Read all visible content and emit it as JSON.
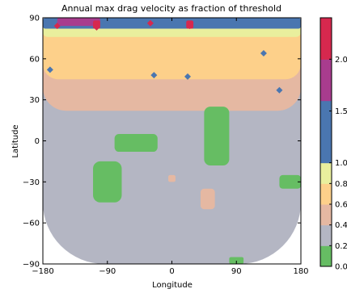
{
  "chart_data": {
    "type": "heatmap",
    "title": "Annual max drag velocity as fraction of threshold",
    "xlabel": "Longitude",
    "ylabel": "Latitude",
    "xlim": [
      -180,
      180
    ],
    "ylim": [
      -90,
      90
    ],
    "x_ticks": [
      -180,
      -90,
      0,
      90,
      180
    ],
    "x_tick_labels": [
      "−180",
      "−90",
      "0",
      "90",
      "180"
    ],
    "y_ticks": [
      -90,
      -60,
      -30,
      0,
      30,
      60,
      90
    ],
    "y_tick_labels": [
      "−90",
      "−60",
      "−30",
      "0",
      "30",
      "60",
      "90"
    ],
    "grid": false,
    "colorbar": {
      "levels": [
        0.0,
        0.2,
        0.4,
        0.6,
        0.8,
        1.0,
        1.2,
        1.4,
        1.6,
        1.8,
        2.0,
        2.2,
        2.4
      ],
      "tick_values": [
        0.0,
        0.2,
        0.4,
        0.6,
        0.8,
        1.0,
        1.5,
        2.0
      ],
      "tick_labels": [
        "0.0",
        "0.2",
        "0.4",
        "0.6",
        "0.8",
        "1.0",
        "1.5",
        "2.0"
      ],
      "band_colors": [
        "#66bd63",
        "#66bd63",
        "#b4b6c3",
        "#b4b6c3",
        "#e5b8a2",
        "#e5b8a2",
        "#fdd08a",
        "#fdd08a",
        "#e9ef9d",
        "#e9ef9d",
        "#4a76b0",
        "#4a76b0",
        "#a83c8e",
        "#a83c8e",
        "#d6284e",
        "#d6284e"
      ]
    },
    "level_colors": {
      "0.0-0.2": "#66bd63",
      "0.2-0.4": "#b4b6c3",
      "0.4-0.6": "#e5b8a2",
      "0.6-0.8": "#fdd08a",
      "0.8-1.0": "#e9ef9d",
      "1.0-1.5": "#4a76b0",
      "1.5-2.0": "#a83c8e",
      "2.0+": "#d6284e"
    },
    "regions": [
      {
        "level": 0.3,
        "lon": [
          -180,
          180
        ],
        "lat": [
          -90,
          90
        ]
      },
      {
        "level": 0.5,
        "lon": [
          -180,
          180
        ],
        "lat": [
          22,
          90
        ]
      },
      {
        "level": 0.7,
        "lon": [
          -180,
          180
        ],
        "lat": [
          45,
          90
        ]
      },
      {
        "level": 0.9,
        "lon": [
          -180,
          180
        ],
        "lat": [
          76,
          90
        ]
      },
      {
        "level": 1.2,
        "lon": [
          -180,
          180
        ],
        "lat": [
          82,
          90
        ]
      },
      {
        "level": 1.7,
        "lon": [
          -160,
          -100
        ],
        "lat": [
          84,
          90
        ]
      },
      {
        "level": 2.1,
        "lon": [
          -110,
          -100
        ],
        "lat": [
          82,
          88
        ]
      },
      {
        "level": 2.1,
        "lon": [
          20,
          30
        ],
        "lat": [
          82,
          88
        ]
      },
      {
        "level": 0.1,
        "lon": [
          45,
          80
        ],
        "lat": [
          -18,
          25
        ]
      },
      {
        "level": 0.1,
        "lon": [
          -110,
          -70
        ],
        "lat": [
          -45,
          -15
        ]
      },
      {
        "level": 0.1,
        "lon": [
          -80,
          -20
        ],
        "lat": [
          -8,
          5
        ]
      },
      {
        "level": 0.1,
        "lon": [
          80,
          100
        ],
        "lat": [
          -90,
          -85
        ]
      },
      {
        "level": 0.1,
        "lon": [
          150,
          180
        ],
        "lat": [
          -35,
          -25
        ]
      },
      {
        "level": 0.5,
        "lon": [
          -5,
          5
        ],
        "lat": [
          -30,
          -25
        ]
      },
      {
        "level": 0.5,
        "lon": [
          40,
          60
        ],
        "lat": [
          -50,
          -35
        ]
      }
    ],
    "spots": [
      {
        "lon": -160,
        "lat": 84,
        "level": 2.1
      },
      {
        "lon": -105,
        "lat": 83,
        "level": 2.1
      },
      {
        "lon": -30,
        "lat": 86,
        "level": 2.1
      },
      {
        "lon": 25,
        "lat": 84,
        "level": 2.1
      },
      {
        "lon": 150,
        "lat": 37,
        "level": 1.2
      },
      {
        "lon": -170,
        "lat": 52,
        "level": 1.2
      },
      {
        "lon": 128,
        "lat": 64,
        "level": 1.2
      },
      {
        "lon": -25,
        "lat": 48,
        "level": 1.2
      },
      {
        "lon": 22,
        "lat": 47,
        "level": 1.2
      }
    ]
  }
}
